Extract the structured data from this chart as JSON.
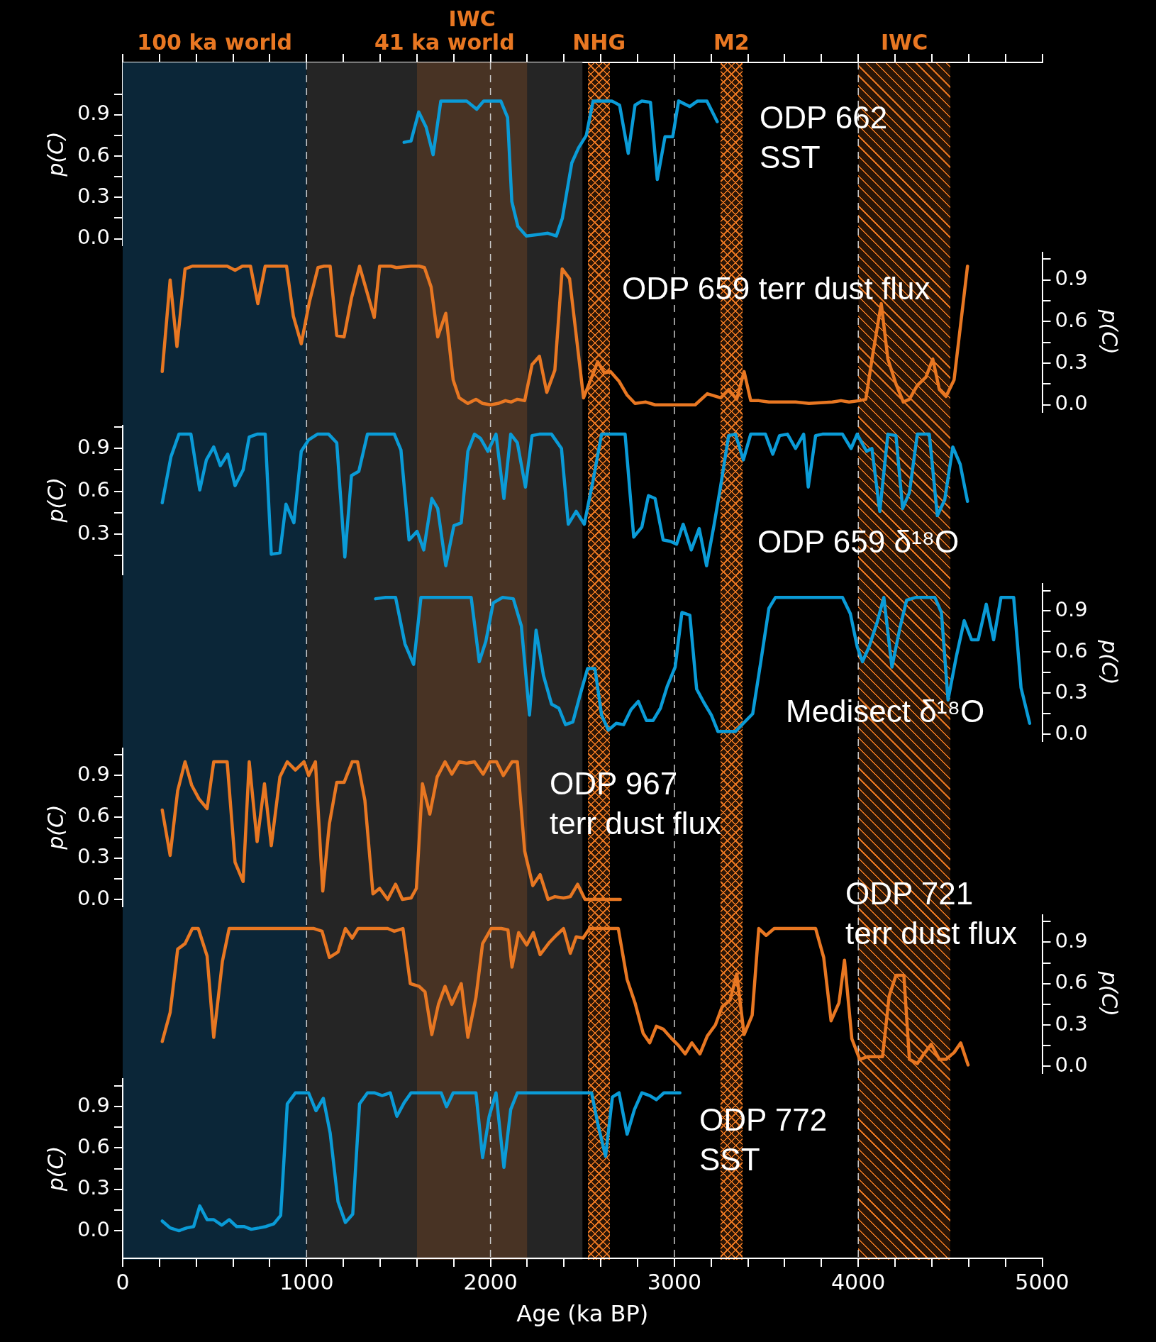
{
  "chart_data": [
    {
      "type": "line",
      "ylabel": "p(C)",
      "annotations": [
        "ODP 662\nSST"
      ],
      "color": "#0a9bd7",
      "xlim": [
        0,
        5000
      ],
      "ylim": [
        -0.05,
        1.28
      ],
      "tick_labels": "y",
      "xticks": [
        0,
        {
          "value": 200,
          "label": null
        },
        {
          "value": 400,
          "label": null
        },
        {
          "value": 600,
          "label": null
        },
        {
          "value": 800,
          "label": null
        },
        1000,
        {
          "value": 1200,
          "label": null
        },
        {
          "value": 1400,
          "label": null
        },
        {
          "value": 1600,
          "label": null
        },
        {
          "value": 1800,
          "label": null
        },
        2000,
        {
          "value": 2200,
          "label": null
        },
        {
          "value": 2400,
          "label": null
        },
        {
          "value": 2600,
          "label": null
        },
        {
          "value": 2800,
          "label": null
        },
        3000,
        {
          "value": 3200,
          "label": null
        },
        {
          "value": 3400,
          "label": null
        },
        {
          "value": 3600,
          "label": null
        },
        {
          "value": 3800,
          "label": null
        },
        4000,
        {
          "value": 4200,
          "label": null
        },
        {
          "value": 4400,
          "label": null
        },
        {
          "value": 4600,
          "label": null
        },
        {
          "value": 4800,
          "label": null
        },
        5000
      ],
      "yticks": [
        {
          "value": 0,
          "label": "0.0"
        },
        {
          "value": 0.15,
          "label": null
        },
        0.3,
        {
          "value": 0.45,
          "label": null
        },
        0.6,
        {
          "value": 0.75,
          "label": null
        },
        0.9,
        {
          "value": 1.05,
          "label": null
        }
      ],
      "bands": [
        {
          "axis": "x",
          "from": 0,
          "to": 1000,
          "label": "100 ka world",
          "color": "#0b2638"
        },
        {
          "axis": "x",
          "from": 1000,
          "to": 2500,
          "label": "41 ka world",
          "color": "#252525"
        },
        {
          "axis": "x",
          "from": 1600,
          "to": 2200,
          "label": "IWC",
          "color": "#e87722"
        },
        {
          "axis": "x",
          "from": 2530,
          "to": 2650,
          "label": "NHG",
          "color": "#e87722"
        },
        {
          "axis": "x",
          "from": 3250,
          "to": 3370,
          "label": "M2",
          "color": "#e87722"
        },
        {
          "axis": "x",
          "from": 4000,
          "to": 4500,
          "label": "IWC",
          "color": "#e87722"
        }
      ],
      "ref_lines": [
        {
          "axis": "x",
          "value": 1000,
          "color": "#cccccc",
          "line_style": "dashed"
        },
        {
          "axis": "x",
          "value": 2000,
          "color": "#cccccc",
          "line_style": "dashed"
        },
        {
          "axis": "x",
          "value": 3000,
          "color": "#cccccc",
          "line_style": "dashed"
        },
        {
          "axis": "x",
          "value": 4000,
          "color": "#cccccc",
          "line_style": "dashed"
        }
      ],
      "x": [
        1530,
        1568,
        1610,
        1650,
        1688,
        1730,
        1870,
        1925,
        1963,
        2056,
        2093,
        2116,
        2149,
        2195,
        2312,
        2358,
        2391,
        2442,
        2479,
        2521,
        2558,
        2660,
        2702,
        2749,
        2786,
        2823,
        2870,
        2907,
        2949,
        2991,
        3023,
        3084,
        3126,
        3177,
        3233
      ],
      "values": [
        0.7,
        0.71,
        0.92,
        0.81,
        0.61,
        1.0,
        1.0,
        0.94,
        1.0,
        1.0,
        0.88,
        0.27,
        0.09,
        0.02,
        0.04,
        0.02,
        0.15,
        0.55,
        0.66,
        0.75,
        1.0,
        1.0,
        0.97,
        0.62,
        0.97,
        1.0,
        0.99,
        0.43,
        0.74,
        0.74,
        1.0,
        0.96,
        1.0,
        1.0,
        0.85
      ]
    },
    {
      "type": "line",
      "ylabel": "p(C)",
      "annotations": [
        "ODP 659 terr dust flux"
      ],
      "color": "#e87722",
      "xlim": [
        0,
        5000
      ],
      "ylim": [
        -0.05,
        1.1
      ],
      "tick_labels": "y",
      "yticks": [
        {
          "value": 0,
          "label": "0.0"
        },
        {
          "value": 0.15,
          "label": null
        },
        0.3,
        {
          "value": 0.45,
          "label": null
        },
        0.6,
        {
          "value": 0.75,
          "label": null
        },
        0.9,
        {
          "value": 1.05,
          "label": null
        }
      ],
      "x": [
        215,
        258,
        295,
        339,
        379,
        531,
        568,
        611,
        651,
        695,
        735,
        775,
        866,
        891,
        928,
        971,
        1015,
        1062,
        1095,
        1128,
        1164,
        1204,
        1244,
        1288,
        1368,
        1397,
        1459,
        1488,
        1568,
        1612,
        1641,
        1677,
        1713,
        1757,
        1797,
        1830,
        1877,
        1921,
        1957,
        2001,
        2041,
        2081,
        2113,
        2146,
        2186,
        2226,
        2266,
        2306,
        2350,
        2390,
        2430,
        2506,
        2583,
        2619,
        2652,
        2699,
        2743,
        2786,
        2845,
        2895,
        3113,
        3179,
        3252,
        3295,
        3339,
        3379,
        3415,
        3459,
        3514,
        3579,
        3659,
        3732,
        3859,
        3906,
        3950,
        4005,
        4041,
        4077,
        4125,
        4161,
        4205,
        4245,
        4278,
        4321,
        4368,
        4405,
        4441,
        4477,
        4521,
        4594
      ],
      "values": [
        0.24,
        0.9,
        0.42,
        0.98,
        1.0,
        1.0,
        1.0,
        0.97,
        1.0,
        1.0,
        0.73,
        1.0,
        1.0,
        1.0,
        0.64,
        0.44,
        0.74,
        0.99,
        1.0,
        1.0,
        0.5,
        0.49,
        0.77,
        1.0,
        0.63,
        1.0,
        1.0,
        0.99,
        1.0,
        1.0,
        0.99,
        0.85,
        0.49,
        0.66,
        0.18,
        0.05,
        0.01,
        0.04,
        0.01,
        0.0,
        0.01,
        0.03,
        0.02,
        0.04,
        0.03,
        0.29,
        0.35,
        0.09,
        0.25,
        0.98,
        0.91,
        0.05,
        0.31,
        0.23,
        0.24,
        0.17,
        0.07,
        0.01,
        0.02,
        0.0,
        0.0,
        0.08,
        0.05,
        0.11,
        0.04,
        0.24,
        0.03,
        0.03,
        0.02,
        0.02,
        0.02,
        0.01,
        0.02,
        0.03,
        0.02,
        0.03,
        0.04,
        0.35,
        0.73,
        0.33,
        0.15,
        0.02,
        0.04,
        0.14,
        0.2,
        0.33,
        0.11,
        0.06,
        0.18,
        1.0
      ]
    },
    {
      "type": "line",
      "ylabel": "p(C)",
      "annotations": [
        "ODP 659 δ¹⁸O"
      ],
      "color": "#0a9bd7",
      "xlim": [
        0,
        5000
      ],
      "ylim": [
        0.02,
        1.06
      ],
      "tick_labels": "y",
      "yticks": [
        {
          "value": 0.15,
          "label": null
        },
        0.3,
        {
          "value": 0.45,
          "label": null
        },
        0.6,
        {
          "value": 0.75,
          "label": null
        },
        0.9,
        {
          "value": 1.05,
          "label": null
        }
      ],
      "x": [
        215,
        262,
        306,
        371,
        419,
        455,
        495,
        531,
        571,
        611,
        655,
        688,
        731,
        775,
        808,
        855,
        888,
        931,
        971,
        1011,
        1059,
        1120,
        1164,
        1208,
        1244,
        1284,
        1331,
        1477,
        1513,
        1557,
        1601,
        1637,
        1681,
        1713,
        1757,
        1801,
        1841,
        1877,
        1913,
        1946,
        1986,
        2030,
        2073,
        2110,
        2146,
        2190,
        2226,
        2266,
        2332,
        2386,
        2423,
        2466,
        2510,
        2557,
        2604,
        2732,
        2779,
        2823,
        2859,
        2895,
        2939,
        2979,
        3012,
        3048,
        3092,
        3135,
        3175,
        3215,
        3252,
        3295,
        3332,
        3375,
        3415,
        3495,
        3535,
        3572,
        3615,
        3659,
        3703,
        3728,
        3768,
        3805,
        3914,
        3961,
        3994,
        4045,
        4074,
        4117,
        4161,
        4205,
        4241,
        4278,
        4321,
        4386,
        4430,
        4470,
        4514,
        4554,
        4594
      ],
      "values": [
        0.52,
        0.84,
        1.0,
        1.0,
        0.61,
        0.82,
        0.91,
        0.78,
        0.86,
        0.64,
        0.75,
        0.98,
        1.0,
        1.0,
        0.16,
        0.17,
        0.51,
        0.38,
        0.88,
        0.96,
        1.0,
        1.0,
        0.94,
        0.14,
        0.71,
        0.74,
        1.0,
        1.0,
        0.89,
        0.26,
        0.32,
        0.19,
        0.55,
        0.48,
        0.08,
        0.36,
        0.38,
        0.88,
        1.0,
        0.97,
        0.88,
        1.0,
        0.55,
        1.0,
        0.94,
        0.63,
        0.99,
        1.0,
        1.0,
        0.9,
        0.37,
        0.46,
        0.37,
        0.67,
        1.0,
        1.0,
        0.28,
        0.35,
        0.57,
        0.55,
        0.26,
        0.25,
        0.23,
        0.37,
        0.19,
        0.34,
        0.08,
        0.36,
        0.64,
        0.99,
        1.0,
        0.82,
        1.0,
        1.0,
        0.86,
        0.99,
        1.0,
        0.9,
        1.0,
        0.63,
        0.99,
        1.0,
        1.0,
        0.9,
        1.0,
        0.88,
        0.9,
        0.46,
        1.0,
        0.99,
        0.48,
        0.59,
        1.0,
        1.0,
        0.43,
        0.54,
        0.91,
        0.79,
        0.53
      ]
    },
    {
      "type": "line",
      "ylabel": "p(C)",
      "annotations": [
        "Medisect δ¹⁸O"
      ],
      "color": "#0a9bd7",
      "xlim": [
        0,
        5000
      ],
      "ylim": [
        -0.05,
        1.1
      ],
      "tick_labels": "y",
      "yticks": [
        {
          "value": 0,
          "label": "0.0"
        },
        {
          "value": 0.15,
          "label": null
        },
        0.3,
        {
          "value": 0.45,
          "label": null
        },
        0.6,
        {
          "value": 0.75,
          "label": null
        },
        0.9,
        {
          "value": 1.05,
          "label": null
        }
      ],
      "x": [
        1375,
        1430,
        1484,
        1535,
        1582,
        1622,
        1841,
        1895,
        1939,
        1975,
        2015,
        2066,
        2124,
        2168,
        2212,
        2248,
        2288,
        2332,
        2372,
        2408,
        2448,
        2488,
        2528,
        2568,
        2604,
        2641,
        2684,
        2724,
        2764,
        2804,
        2848,
        2884,
        2924,
        2961,
        3004,
        3041,
        3084,
        3121,
        3161,
        3201,
        3237,
        3332,
        3375,
        3426,
        3470,
        3514,
        3550,
        3914,
        3957,
        3994,
        4023,
        4059,
        4103,
        4139,
        4183,
        4227,
        4263,
        4314,
        4416,
        4452,
        4488,
        4532,
        4576,
        4616,
        4652,
        4696,
        4736,
        4776,
        4845,
        4885,
        4932
      ],
      "values": [
        0.99,
        1.0,
        1.0,
        0.66,
        0.51,
        1.0,
        1.0,
        1.0,
        0.53,
        0.68,
        0.96,
        1.0,
        0.99,
        0.79,
        0.14,
        0.76,
        0.43,
        0.22,
        0.19,
        0.07,
        0.09,
        0.29,
        0.48,
        0.48,
        0.14,
        0.03,
        0.08,
        0.07,
        0.18,
        0.24,
        0.1,
        0.1,
        0.19,
        0.35,
        0.49,
        0.89,
        0.87,
        0.33,
        0.23,
        0.14,
        0.02,
        0.02,
        0.08,
        0.15,
        0.53,
        0.92,
        1.0,
        1.0,
        0.88,
        0.64,
        0.53,
        0.64,
        0.82,
        1.0,
        0.49,
        0.78,
        0.98,
        1.0,
        1.0,
        0.89,
        0.25,
        0.56,
        0.83,
        0.69,
        0.69,
        0.95,
        0.69,
        1.0,
        1.0,
        0.34,
        0.08
      ]
    },
    {
      "type": "line",
      "ylabel": "p(C)",
      "annotations": [
        "ODP 967\nterr dust flux"
      ],
      "color": "#e87722",
      "xlim": [
        0,
        5000
      ],
      "ylim": [
        -0.05,
        1.1
      ],
      "tick_labels": "y",
      "yticks": [
        {
          "value": 0,
          "label": "0.0"
        },
        {
          "value": 0.15,
          "label": null
        },
        0.3,
        {
          "value": 0.45,
          "label": null
        },
        0.6,
        {
          "value": 0.75,
          "label": null
        },
        0.9,
        {
          "value": 1.05,
          "label": null
        }
      ],
      "x": [
        215,
        258,
        299,
        339,
        375,
        415,
        459,
        495,
        531,
        568,
        611,
        655,
        688,
        731,
        771,
        808,
        855,
        895,
        939,
        986,
        1011,
        1048,
        1088,
        1124,
        1164,
        1204,
        1248,
        1277,
        1317,
        1361,
        1397,
        1441,
        1484,
        1521,
        1568,
        1597,
        1630,
        1670,
        1710,
        1753,
        1790,
        1830,
        1870,
        1913,
        1960,
        1997,
        2033,
        2070,
        2117,
        2146,
        2186,
        2230,
        2270,
        2313,
        2350,
        2397,
        2434,
        2474,
        2514,
        2706
      ],
      "values": [
        0.65,
        0.32,
        0.79,
        1.0,
        0.83,
        0.73,
        0.66,
        1.0,
        1.0,
        1.0,
        0.27,
        0.13,
        1.0,
        0.42,
        0.84,
        0.39,
        0.89,
        1.0,
        0.94,
        1.0,
        0.9,
        1.0,
        0.06,
        0.55,
        0.85,
        0.85,
        1.0,
        1.0,
        0.72,
        0.04,
        0.08,
        0.0,
        0.11,
        0.0,
        0.01,
        0.08,
        0.84,
        0.62,
        0.89,
        1.0,
        0.91,
        1.0,
        0.99,
        1.0,
        0.91,
        1.0,
        1.0,
        0.9,
        1.0,
        1.0,
        0.35,
        0.1,
        0.18,
        0.0,
        0.02,
        0.01,
        0.02,
        0.11,
        0.0,
        0.0
      ]
    },
    {
      "type": "line",
      "ylabel": "p(C)",
      "annotations": [
        "ODP 721\nterr dust flux"
      ],
      "color": "#e87722",
      "xlim": [
        0,
        5000
      ],
      "ylim": [
        -0.05,
        1.1
      ],
      "tick_labels": "y",
      "yticks": [
        {
          "value": 0,
          "label": "0.0"
        },
        {
          "value": 0.15,
          "label": null
        },
        0.3,
        {
          "value": 0.45,
          "label": null
        },
        0.6,
        {
          "value": 0.75,
          "label": null
        },
        0.9,
        {
          "value": 1.05,
          "label": null
        }
      ],
      "x": [
        215,
        258,
        299,
        339,
        379,
        411,
        459,
        495,
        542,
        579,
        993,
        1040,
        1084,
        1124,
        1171,
        1211,
        1248,
        1280,
        1361,
        1404,
        1441,
        1477,
        1524,
        1564,
        1612,
        1644,
        1681,
        1717,
        1753,
        1790,
        1841,
        1877,
        1921,
        1957,
        2004,
        2059,
        2095,
        2117,
        2153,
        2197,
        2233,
        2270,
        2321,
        2357,
        2397,
        2434,
        2466,
        2503,
        2539,
        2612,
        2652,
        2695,
        2743,
        2786,
        2830,
        2866,
        2902,
        2939,
        2986,
        3023,
        3059,
        3095,
        3139,
        3179,
        3223,
        3259,
        3303,
        3339,
        3379,
        3423,
        3459,
        3499,
        3543,
        3768,
        3812,
        3852,
        3895,
        3925,
        3965,
        4008,
        4052,
        4095,
        4132,
        4168,
        4205,
        4248,
        4278,
        4321,
        4357,
        4397,
        4441,
        4477,
        4521,
        4557,
        4597
      ],
      "values": [
        0.18,
        0.39,
        0.85,
        0.89,
        1.0,
        1.0,
        0.8,
        0.21,
        0.76,
        1.0,
        1.0,
        1.0,
        0.98,
        0.79,
        0.83,
        1.0,
        0.93,
        1.0,
        1.0,
        1.0,
        1.0,
        0.98,
        1.0,
        0.6,
        0.58,
        0.54,
        0.23,
        0.45,
        0.58,
        0.45,
        0.6,
        0.21,
        0.5,
        0.89,
        1.0,
        1.0,
        0.99,
        0.72,
        0.97,
        0.88,
        0.97,
        0.81,
        0.9,
        0.95,
        1.0,
        0.82,
        0.94,
        0.93,
        1.0,
        1.0,
        1.0,
        1.0,
        0.63,
        0.46,
        0.24,
        0.17,
        0.29,
        0.27,
        0.2,
        0.15,
        0.09,
        0.17,
        0.09,
        0.22,
        0.3,
        0.43,
        0.48,
        0.67,
        0.23,
        0.37,
        1.0,
        0.95,
        1.0,
        1.0,
        0.79,
        0.33,
        0.46,
        0.77,
        0.2,
        0.05,
        0.07,
        0.07,
        0.07,
        0.51,
        0.66,
        0.66,
        0.05,
        0.02,
        0.09,
        0.16,
        0.05,
        0.05,
        0.1,
        0.17,
        0.01
      ]
    },
    {
      "type": "line",
      "xlabel": "Age (ka BP)",
      "ylabel": "p(C)",
      "annotations": [
        "ODP 772\nSST"
      ],
      "color": "#0a9bd7",
      "xlim": [
        0,
        5000
      ],
      "ylim": [
        -0.2,
        1.1
      ],
      "xticks": [
        0,
        {
          "value": 200,
          "label": null
        },
        {
          "value": 400,
          "label": null
        },
        {
          "value": 600,
          "label": null
        },
        {
          "value": 800,
          "label": null
        },
        1000,
        {
          "value": 1200,
          "label": null
        },
        {
          "value": 1400,
          "label": null
        },
        {
          "value": 1600,
          "label": null
        },
        {
          "value": 1800,
          "label": null
        },
        2000,
        {
          "value": 2200,
          "label": null
        },
        {
          "value": 2400,
          "label": null
        },
        {
          "value": 2600,
          "label": null
        },
        {
          "value": 2800,
          "label": null
        },
        3000,
        {
          "value": 3200,
          "label": null
        },
        {
          "value": 3400,
          "label": null
        },
        {
          "value": 3600,
          "label": null
        },
        {
          "value": 3800,
          "label": null
        },
        4000,
        {
          "value": 4200,
          "label": null
        },
        {
          "value": 4400,
          "label": null
        },
        {
          "value": 4600,
          "label": null
        },
        {
          "value": 4800,
          "label": null
        },
        5000
      ],
      "yticks": [
        {
          "value": 0,
          "label": "0.0"
        },
        {
          "value": 0.15,
          "label": null
        },
        0.3,
        {
          "value": 0.45,
          "label": null
        },
        0.6,
        {
          "value": 0.75,
          "label": null
        },
        0.9,
        {
          "value": 1.05,
          "label": null
        }
      ],
      "x": [
        215,
        258,
        306,
        349,
        386,
        419,
        459,
        495,
        539,
        579,
        619,
        659,
        699,
        742,
        779,
        822,
        859,
        895,
        939,
        1011,
        1051,
        1091,
        1128,
        1171,
        1211,
        1251,
        1288,
        1331,
        1368,
        1411,
        1455,
        1491,
        1531,
        1568,
        1732,
        1761,
        1797,
        1921,
        1957,
        1993,
        2030,
        2073,
        2110,
        2146,
        2550,
        2586,
        2626,
        2663,
        2699,
        2743,
        2783,
        2823,
        2866,
        2902,
        2943,
        3030
      ],
      "values": [
        0.07,
        0.02,
        0.0,
        0.02,
        0.03,
        0.18,
        0.08,
        0.08,
        0.04,
        0.08,
        0.03,
        0.03,
        0.01,
        0.02,
        0.03,
        0.05,
        0.11,
        0.92,
        1.0,
        1.0,
        0.87,
        0.96,
        0.71,
        0.21,
        0.06,
        0.12,
        0.92,
        1.0,
        1.0,
        0.98,
        1.0,
        0.83,
        0.93,
        1.0,
        1.0,
        0.9,
        1.0,
        1.0,
        0.53,
        0.83,
        1.0,
        0.46,
        0.88,
        1.0,
        1.0,
        0.76,
        0.54,
        0.97,
        1.0,
        0.7,
        0.88,
        1.0,
        0.98,
        0.95,
        1.0,
        1.0
      ]
    }
  ]
}
